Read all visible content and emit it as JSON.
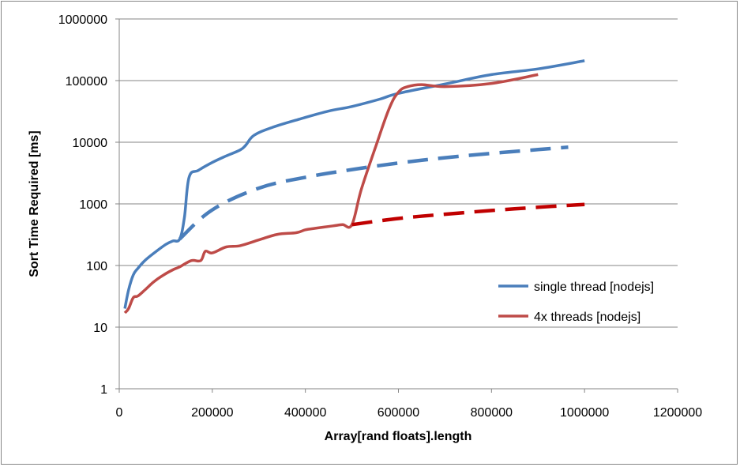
{
  "chart_data": {
    "type": "line",
    "title": "",
    "xlabel": "Array[rand floats].length",
    "ylabel": "Sort Time Required [ms]",
    "xlim": [
      0,
      1200000
    ],
    "ylim": [
      1,
      1000000
    ],
    "yscale": "log",
    "grid": "horizontal",
    "legend_position": "right",
    "x_ticks": [
      0,
      200000,
      400000,
      600000,
      800000,
      1000000,
      1200000
    ],
    "x_tick_labels": [
      "0",
      "200000",
      "400000",
      "600000",
      "800000",
      "1000000",
      "1200000"
    ],
    "y_ticks": [
      1,
      10,
      100,
      1000,
      10000,
      100000,
      1000000
    ],
    "y_tick_labels": [
      "1",
      "10",
      "100",
      "1000",
      "10000",
      "100000",
      "1000000"
    ],
    "series": [
      {
        "name": "single thread [nodejs]",
        "color": "#4a7ebb",
        "style": "solid",
        "x": [
          12000,
          20000,
          30000,
          40000,
          55000,
          75000,
          100000,
          115000,
          130000,
          140000,
          150000,
          170000,
          200000,
          230000,
          260000,
          272000,
          290000,
          330000,
          390000,
          450000,
          500000,
          560000,
          600000,
          700000,
          800000,
          900000,
          1000000
        ],
        "y": [
          20,
          40,
          70,
          90,
          120,
          160,
          220,
          250,
          270,
          600,
          2700,
          3500,
          4700,
          6000,
          7500,
          9000,
          13000,
          17500,
          24000,
          32000,
          38000,
          50000,
          62000,
          88000,
          125000,
          155000,
          210000
        ]
      },
      {
        "name": "4x threads [nodejs]",
        "color": "#be4b48",
        "style": "solid",
        "x": [
          12000,
          20000,
          30000,
          40000,
          55000,
          75000,
          95000,
          115000,
          130000,
          155000,
          175000,
          185000,
          200000,
          230000,
          260000,
          300000,
          340000,
          380000,
          400000,
          420000,
          440000,
          460000,
          480000,
          500000,
          520000,
          550000,
          580000,
          600000,
          620000,
          650000,
          700000,
          800000,
          900000
        ],
        "y": [
          17,
          20,
          30,
          32,
          40,
          55,
          70,
          85,
          95,
          120,
          120,
          170,
          160,
          200,
          210,
          260,
          320,
          340,
          380,
          400,
          420,
          440,
          460,
          460,
          1700,
          8000,
          35000,
          65000,
          80000,
          86000,
          80000,
          90000,
          125000
        ]
      },
      {
        "name": "",
        "color": "#4a7ebb",
        "style": "dashed",
        "x": [
          130000,
          200000,
          300000,
          400000,
          500000,
          600000,
          700000,
          800000,
          900000,
          965000
        ],
        "y": [
          270,
          800,
          1800,
          2700,
          3600,
          4600,
          5600,
          6600,
          7600,
          8300
        ]
      },
      {
        "name": "",
        "color": "#c00000",
        "style": "dashed",
        "x": [
          500000,
          600000,
          700000,
          800000,
          900000,
          1000000
        ],
        "y": [
          460,
          580,
          680,
          780,
          880,
          980
        ]
      }
    ]
  }
}
